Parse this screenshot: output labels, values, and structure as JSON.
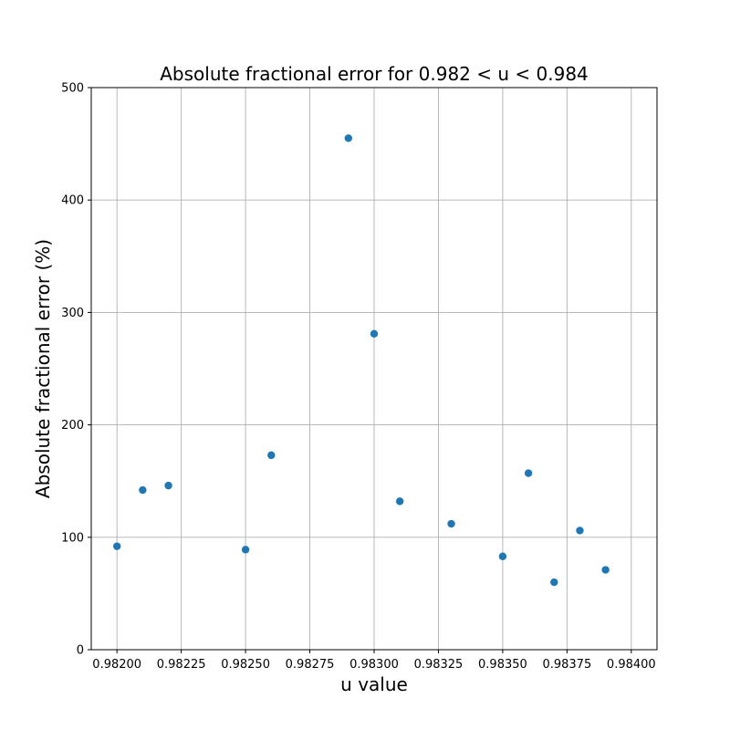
{
  "chart_data": {
    "type": "scatter",
    "title": "Absolute fractional error for 0.982 < u < 0.984",
    "xlabel": "u value",
    "ylabel": "Absolute fractional error (%)",
    "xlim": [
      0.9819,
      0.9841
    ],
    "ylim": [
      0,
      500
    ],
    "xticks": [
      0.982,
      0.98225,
      0.9825,
      0.98275,
      0.983,
      0.98325,
      0.9835,
      0.98375,
      0.984
    ],
    "xtick_labels": [
      "0.98200",
      "0.98225",
      "0.98250",
      "0.98275",
      "0.98300",
      "0.98325",
      "0.98350",
      "0.98375",
      "0.98400"
    ],
    "yticks": [
      0,
      100,
      200,
      300,
      400,
      500
    ],
    "ytick_labels": [
      "0",
      "100",
      "200",
      "300",
      "400",
      "500"
    ],
    "grid": true,
    "color": "#1f77b4",
    "series": [
      {
        "x": [
          0.982,
          0.9821,
          0.9822,
          0.9825,
          0.9826,
          0.9829,
          0.983,
          0.9831,
          0.9833,
          0.9835,
          0.9836,
          0.9837,
          0.9838,
          0.9839
        ],
        "y": [
          92,
          142,
          146,
          89,
          173,
          455,
          281,
          132,
          112,
          83,
          157,
          60,
          106,
          71
        ]
      }
    ]
  }
}
